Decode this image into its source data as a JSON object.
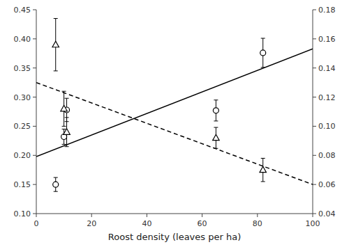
{
  "chart_data": {
    "type": "line",
    "x_label": "Roost density (leaves per ha)",
    "xlim": [
      0,
      100
    ],
    "xticks": [
      0,
      20,
      40,
      60,
      80,
      100
    ],
    "ylim": [
      0.1,
      0.45
    ],
    "yticks": [
      {
        "value": 0.1,
        "label": "0.10"
      },
      0.15,
      {
        "value": 0.2,
        "label": "0.20"
      },
      0.25,
      {
        "value": 0.3,
        "label": "0.30"
      },
      0.35,
      {
        "value": 0.4,
        "label": "0.40"
      },
      0.45
    ],
    "y2lim": [
      0.04,
      0.18
    ],
    "y2ticks": [
      0.04,
      0.06,
      0.08,
      {
        "value": 0.1,
        "label": "0.10"
      },
      0.12,
      0.14,
      0.16,
      0.18
    ],
    "grid": false,
    "series": [
      {
        "type": "line",
        "line_style": "solid",
        "color": "#000000",
        "x": [
          0,
          100
        ],
        "values": [
          0.198,
          0.383
        ]
      },
      {
        "type": "line",
        "line_style": "dashed",
        "color": "#000000",
        "x": [
          0,
          100
        ],
        "values": [
          0.325,
          0.15
        ]
      },
      {
        "type": "scatter",
        "marker": "circle",
        "color": "#000000",
        "x": [
          7,
          10,
          11,
          65,
          82
        ],
        "values": [
          0.15,
          0.232,
          0.278,
          0.277,
          0.376
        ],
        "errors": [
          0.012,
          0.013,
          0.02,
          0.018,
          0.025
        ]
      },
      {
        "type": "scatter",
        "marker": "triangle",
        "color": "#000000",
        "x": [
          7,
          10,
          11,
          65,
          82
        ],
        "values": [
          0.39,
          0.28,
          0.24,
          0.23,
          0.175
        ],
        "errors": [
          0.045,
          0.03,
          0.025,
          0.018,
          0.02
        ]
      }
    ]
  }
}
